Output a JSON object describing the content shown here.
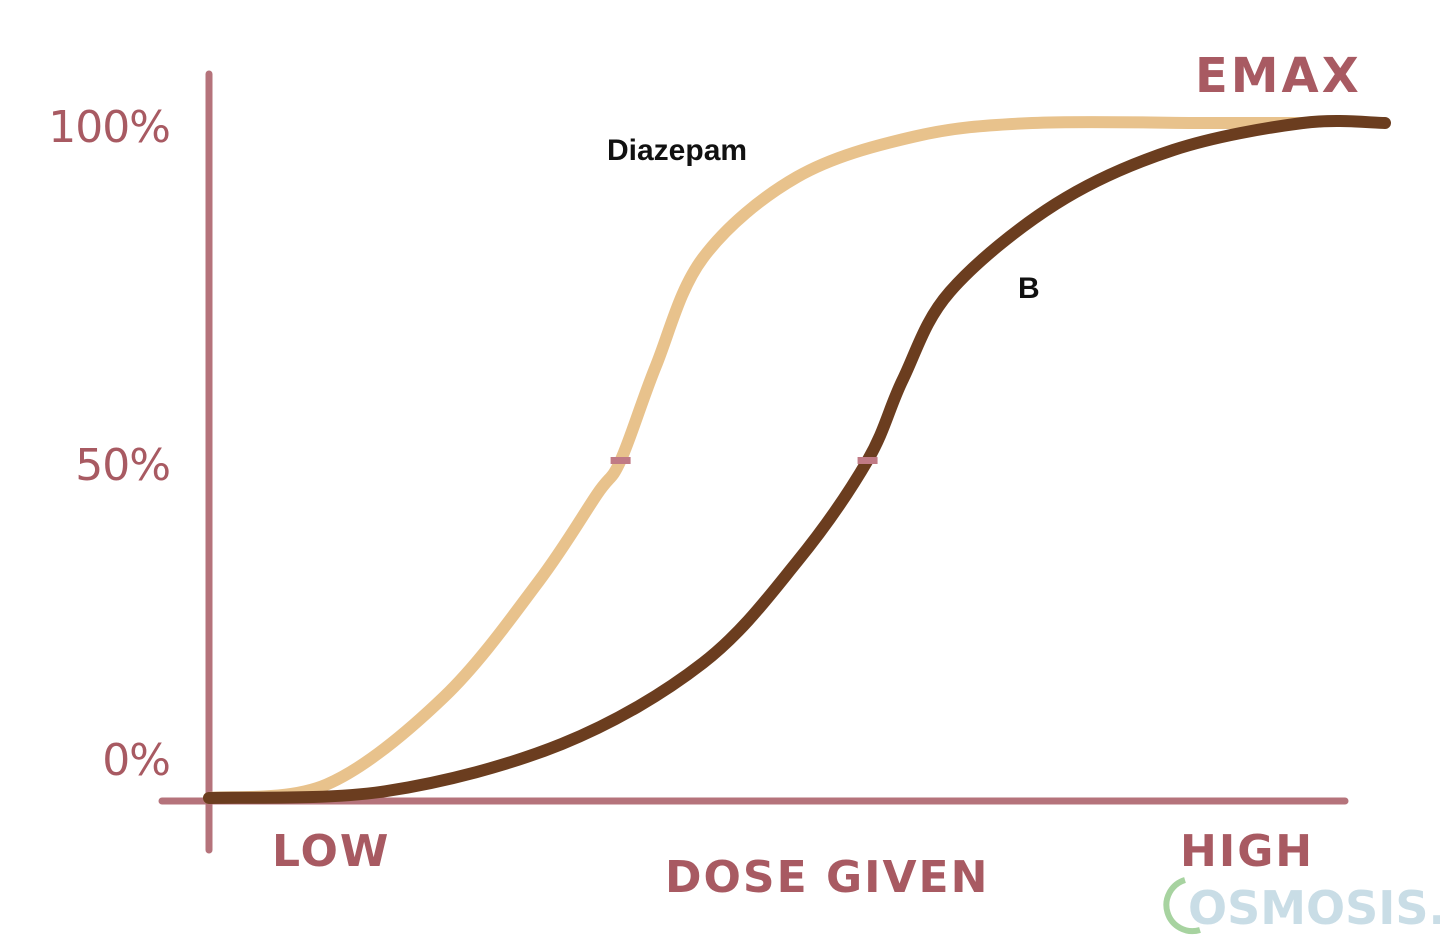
{
  "chart_data": {
    "type": "line",
    "title": "",
    "xlabel": "DOSE GIVEN",
    "ylabel": "",
    "x_ticks": [
      "LOW",
      "HIGH"
    ],
    "y_ticks": [
      "0%",
      "50%",
      "100%"
    ],
    "ylim": [
      0,
      100
    ],
    "xlim": [
      0,
      1
    ],
    "annotations": [
      "EMAX"
    ],
    "grid": false,
    "watermark": "OSMOSIS.o",
    "series": [
      {
        "name": "Diazepam",
        "color": "#e8c28c",
        "ec50": 0.35,
        "points": [
          [
            0.0,
            0
          ],
          [
            0.1,
            2
          ],
          [
            0.2,
            15
          ],
          [
            0.28,
            32
          ],
          [
            0.33,
            45
          ],
          [
            0.35,
            50
          ],
          [
            0.38,
            64
          ],
          [
            0.42,
            80
          ],
          [
            0.5,
            92
          ],
          [
            0.6,
            98
          ],
          [
            0.7,
            100
          ],
          [
            0.85,
            100
          ],
          [
            0.93,
            100
          ]
        ]
      },
      {
        "name": "B",
        "color": "#6b3d1f",
        "ec50": 0.56,
        "points": [
          [
            0.0,
            0
          ],
          [
            0.15,
            1
          ],
          [
            0.3,
            8
          ],
          [
            0.42,
            20
          ],
          [
            0.5,
            35
          ],
          [
            0.56,
            50
          ],
          [
            0.59,
            62
          ],
          [
            0.63,
            75
          ],
          [
            0.72,
            88
          ],
          [
            0.82,
            96
          ],
          [
            0.93,
            100
          ],
          [
            1.0,
            100
          ]
        ]
      }
    ]
  }
}
